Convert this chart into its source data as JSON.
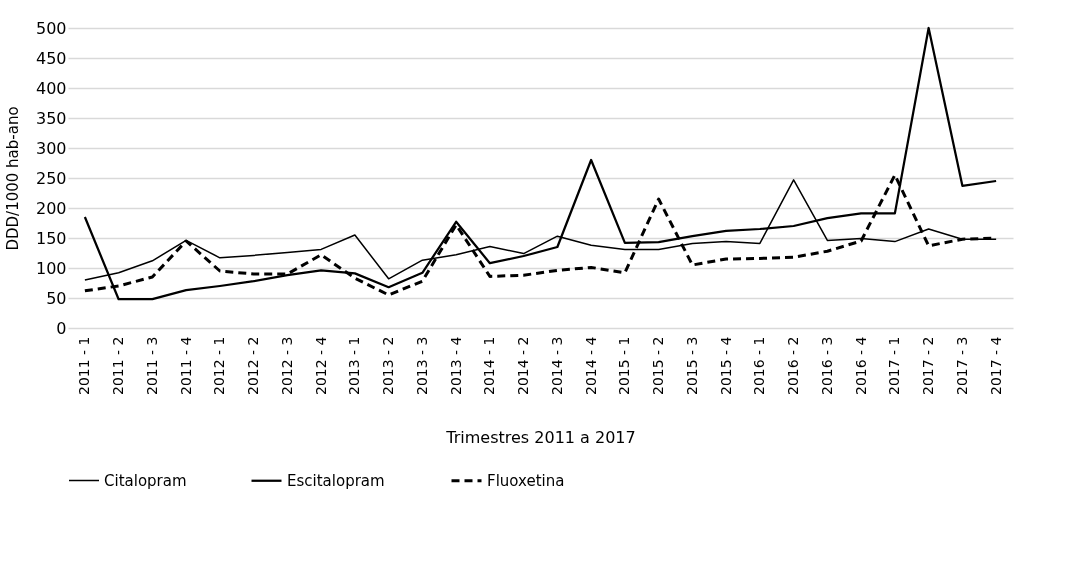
{
  "chart_data": {
    "type": "line",
    "xlabel": "Trimestres 2011 a 2017",
    "ylabel": "DDD/1000 hab-ano",
    "categories": [
      "2011 - 1",
      "2011 - 2",
      "2011 - 3",
      "2011 - 4",
      "2012 - 1",
      "2012 - 2",
      "2012 - 3",
      "2012 - 4",
      "2013 - 1",
      "2013 - 2",
      "2013 - 3",
      "2013 - 4",
      "2014 - 1",
      "2014 - 2",
      "2014 - 3",
      "2014 - 4",
      "2015 - 1",
      "2015 - 2",
      "2015 - 3",
      "2015 - 4",
      "2016 - 1",
      "2016 - 2",
      "2016 - 3",
      "2016 - 4",
      "2017 - 1",
      "2017 - 2",
      "2017 - 3",
      "2017 - 4"
    ],
    "series": [
      {
        "name": "Citalopram",
        "color": "#000000",
        "line_style": "solid",
        "values": [
          80,
          92,
          112,
          146,
          117,
          121,
          126,
          131,
          155,
          82,
          113,
          122,
          136,
          124,
          153,
          138,
          131,
          131,
          141,
          144,
          141,
          247,
          146,
          149,
          144,
          165,
          148,
          148
        ]
      },
      {
        "name": "Escitalopram",
        "color": "#000000",
        "line_style": "solid",
        "values": [
          185,
          48,
          48,
          63,
          70,
          78,
          88,
          96,
          91,
          68,
          92,
          177,
          108,
          120,
          135,
          280,
          142,
          143,
          153,
          162,
          165,
          170,
          183,
          191,
          191,
          500,
          237,
          245
        ]
      },
      {
        "name": "Fluoxetina",
        "color": "#000000",
        "line_style": "dashed",
        "values": [
          62,
          70,
          85,
          145,
          95,
          90,
          90,
          122,
          83,
          55,
          78,
          172,
          86,
          88,
          96,
          101,
          92,
          215,
          105,
          115,
          116,
          118,
          128,
          145,
          255,
          137,
          148,
          150
        ]
      }
    ],
    "ylim": [
      0,
      500
    ],
    "yticks": [
      0,
      50,
      100,
      150,
      200,
      250,
      300,
      350,
      400,
      450,
      500
    ],
    "grid": "y",
    "legend": "bottom",
    "marker": "none"
  }
}
